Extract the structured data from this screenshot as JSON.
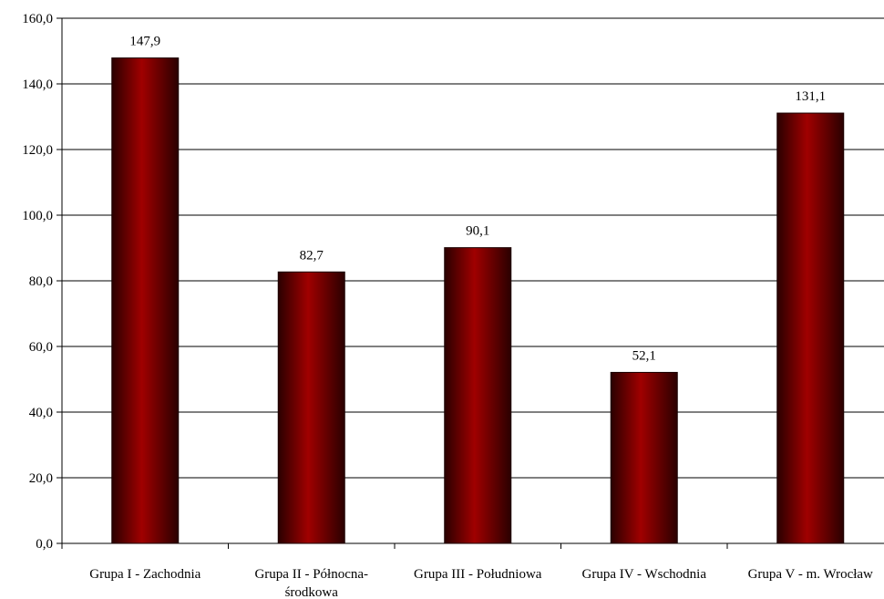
{
  "chart_data": {
    "type": "bar",
    "title": "",
    "xlabel": "",
    "ylabel": "",
    "ylim": [
      0,
      160
    ],
    "ytick_step": 20,
    "ytick_labels": [
      "0,0",
      "20,0",
      "40,0",
      "60,0",
      "80,0",
      "100,0",
      "120,0",
      "140,0",
      "160,0"
    ],
    "categories": [
      [
        "Grupa I - Zachodnia"
      ],
      [
        "Grupa II - Północna-",
        "środkowa"
      ],
      [
        "Grupa III - Południowa"
      ],
      [
        "Grupa IV - Wschodnia"
      ],
      [
        "Grupa V - m. Wrocław"
      ]
    ],
    "values": [
      147.9,
      82.7,
      90.1,
      52.1,
      131.1
    ],
    "value_labels": [
      "147,9",
      "82,7",
      "90,1",
      "52,1",
      "131,1"
    ],
    "grid": true,
    "legend": "none",
    "colors": {
      "bar_dark": "#2a0000",
      "bar_mid": "#8b0000",
      "bar_light": "#a00000",
      "grid": "#000000",
      "axis": "#000000"
    }
  }
}
